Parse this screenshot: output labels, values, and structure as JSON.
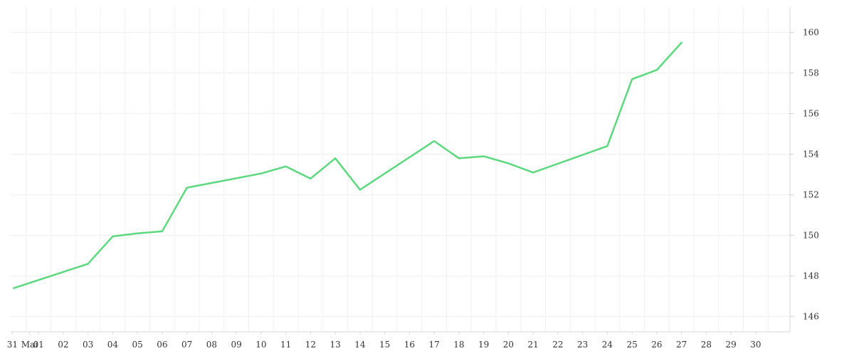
{
  "chart_data": {
    "type": "line",
    "title": "",
    "xlabel": "",
    "ylabel": "",
    "x_tick_labels": [
      "31",
      "Mai",
      "01",
      "02",
      "03",
      "04",
      "05",
      "06",
      "07",
      "08",
      "09",
      "10",
      "11",
      "12",
      "13",
      "14",
      "15",
      "16",
      "17",
      "18",
      "19",
      "20",
      "21",
      "22",
      "23",
      "24",
      "25",
      "26",
      "27",
      "28",
      "29",
      "30"
    ],
    "y_ticks": [
      146,
      148,
      150,
      152,
      154,
      156,
      158,
      160
    ],
    "ylim": [
      145.25,
      161.25
    ],
    "y_axis_position": "right",
    "grid": true,
    "legend": "none",
    "line_color": "#5dd87f",
    "series": [
      {
        "x": [
          "2024-05-31",
          "2024-06-03",
          "2024-06-04",
          "2024-06-05",
          "2024-06-06",
          "2024-06-07",
          "2024-06-10",
          "2024-06-11",
          "2024-06-12",
          "2024-06-13",
          "2024-06-14",
          "2024-06-17",
          "2024-06-18",
          "2024-06-19",
          "2024-06-20",
          "2024-06-21",
          "2024-06-24",
          "2024-06-25",
          "2024-06-26",
          "2024-06-27"
        ],
        "y": [
          147.4,
          148.6,
          149.95,
          150.1,
          150.2,
          152.35,
          153.05,
          153.4,
          152.8,
          153.8,
          152.25,
          154.65,
          153.8,
          153.9,
          153.55,
          153.1,
          154.4,
          157.7,
          158.15,
          159.5
        ]
      }
    ]
  }
}
